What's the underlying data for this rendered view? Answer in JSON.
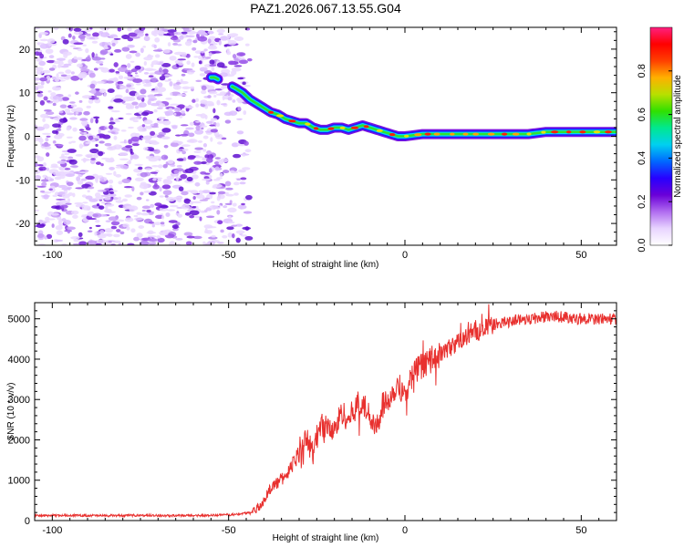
{
  "title": "PAZ1.2026.067.13.55.G04",
  "chart_data": [
    {
      "type": "heatmap",
      "name": "spectrogram",
      "xlabel": "Height of straight line (km)",
      "ylabel": "Frequency (Hz)",
      "xlim": [
        -105,
        60
      ],
      "ylim": [
        -25,
        25
      ],
      "xticks": [
        -100,
        -50,
        0,
        50
      ],
      "yticks": [
        -20,
        -10,
        0,
        10,
        20
      ],
      "noise_region_x": [
        -105,
        -44
      ],
      "ridge": {
        "x": [
          -55,
          -54,
          -48,
          -46,
          -44,
          -42,
          -40,
          -38,
          -36,
          -34,
          -32,
          -30,
          -28,
          -26,
          -24,
          -22,
          -20,
          -18,
          -16,
          -14,
          -12,
          -10,
          -8,
          -6,
          -4,
          -2,
          0,
          5,
          10,
          15,
          20,
          25,
          30,
          35,
          40,
          45,
          50,
          55,
          60
        ],
        "y": [
          13.5,
          13.5,
          11,
          10,
          8.5,
          7.5,
          6.5,
          5.5,
          5,
          4,
          3.5,
          3,
          3,
          2,
          1.5,
          1.5,
          2,
          2,
          1.5,
          2,
          2.5,
          2,
          1.5,
          1,
          0.5,
          0,
          0,
          0.5,
          0.5,
          0.5,
          0.5,
          0.5,
          0.5,
          0.5,
          1,
          1,
          1,
          1,
          1
        ]
      },
      "colorbar": {
        "label": "Normalized spectral amplitude",
        "ticks": [
          "0.0",
          "0.2",
          "0.4",
          "0.6",
          "0.8"
        ],
        "range": [
          0,
          1
        ],
        "colors": [
          "#ffffff",
          "#e8d4ff",
          "#b06cf0",
          "#6a00d8",
          "#2800ff",
          "#0068ff",
          "#00d0f0",
          "#00e890",
          "#30e000",
          "#b8e000",
          "#ffb000",
          "#ff4000",
          "#ff0000",
          "#ff2080"
        ]
      }
    },
    {
      "type": "line",
      "name": "snr",
      "xlabel": "Height of straight line (km)",
      "ylabel": "SNR (10 * v/v)",
      "xlim": [
        -105,
        60
      ],
      "ylim": [
        0,
        5400
      ],
      "xticks": [
        -100,
        -50,
        0,
        50
      ],
      "yticks": [
        0,
        1000,
        2000,
        3000,
        4000,
        5000
      ],
      "color": "#e8302e",
      "series": [
        {
          "name": "SNR",
          "x": [
            -105,
            -95,
            -85,
            -75,
            -65,
            -55,
            -48,
            -44,
            -42,
            -40,
            -38,
            -36,
            -34,
            -32,
            -30,
            -28,
            -26,
            -24,
            -22,
            -20,
            -18,
            -16,
            -14,
            -12,
            -10,
            -8,
            -6,
            -4,
            -2,
            0,
            2,
            4,
            6,
            8,
            10,
            12,
            14,
            16,
            18,
            20,
            22,
            25,
            28,
            30,
            35,
            40,
            45,
            50,
            55,
            60
          ],
          "y": [
            120,
            130,
            120,
            130,
            120,
            130,
            150,
            200,
            300,
            480,
            820,
            950,
            1100,
            1350,
            1700,
            2000,
            1700,
            2400,
            2300,
            2200,
            2700,
            2500,
            2800,
            2900,
            2600,
            2400,
            2900,
            3100,
            3400,
            3100,
            3600,
            3800,
            3900,
            4000,
            4100,
            4250,
            4350,
            4500,
            4550,
            4650,
            4750,
            4850,
            4900,
            4950,
            5000,
            5050,
            5050,
            5000,
            5000,
            5000
          ]
        }
      ]
    }
  ]
}
